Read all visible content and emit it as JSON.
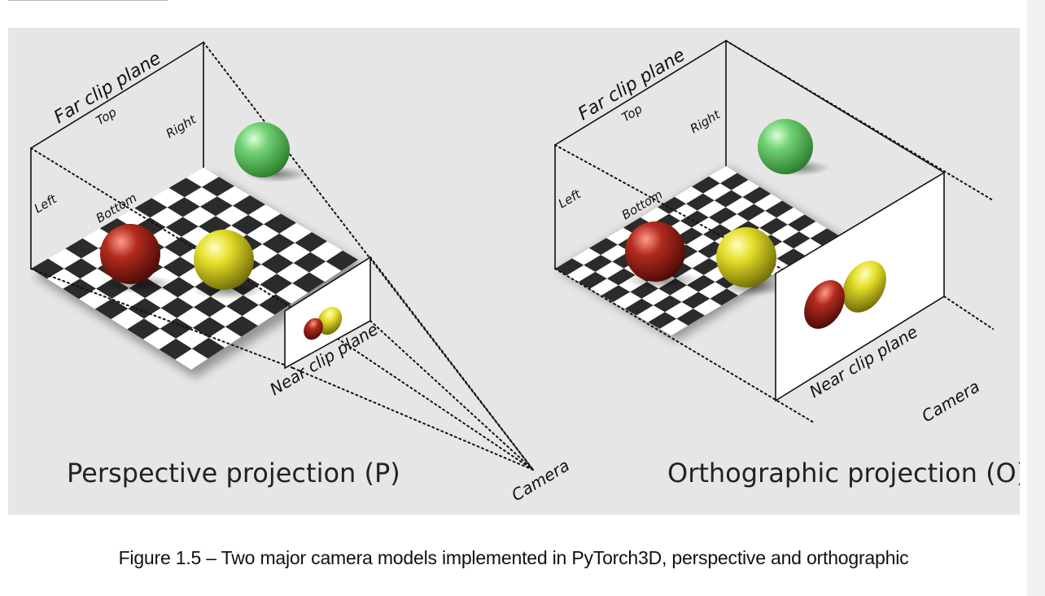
{
  "figure": {
    "perspective": {
      "title": "Perspective projection (P)",
      "far_plane": "Far clip plane",
      "near_plane": "Near clip plane",
      "top": "Top",
      "right": "Right",
      "left": "Left",
      "bottom": "Bottom",
      "camera": "Camera"
    },
    "orthographic": {
      "title": "Orthographic projection (O)",
      "far_plane": "Far clip plane",
      "near_plane": "Near clip plane",
      "top": "Top",
      "right": "Right",
      "left": "Left",
      "bottom": "Bottom",
      "camera": "Camera"
    },
    "colors": {
      "panel": "#e6e6e6",
      "sphere_red": "#8b1a12",
      "sphere_yellow": "#d8d41a",
      "sphere_green": "#5cc260",
      "checker_dark": "#2b2b2b",
      "checker_light": "#ffffff"
    }
  },
  "caption": "Figure 1.5 – Two major camera models implemented in PyTorch3D, perspective and orthographic"
}
